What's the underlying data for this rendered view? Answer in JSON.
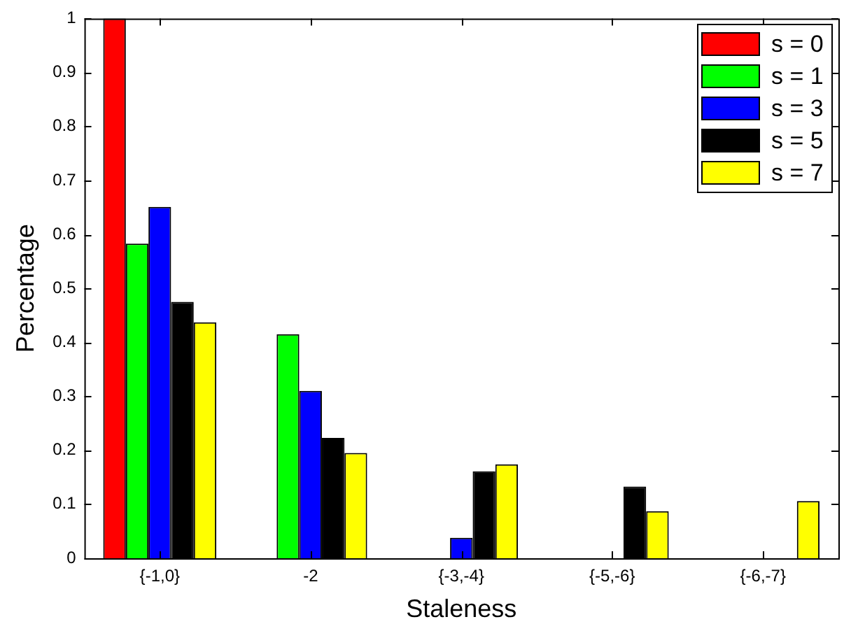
{
  "chart_data": {
    "type": "bar",
    "xlabel": "Staleness",
    "ylabel": "Percentage",
    "categories": [
      "{-1,0}",
      "-2",
      "{-3,-4}",
      "{-5,-6}",
      "{-6,-7}"
    ],
    "ylim": [
      0,
      1
    ],
    "yticks": [
      0,
      0.1,
      0.2,
      0.3,
      0.4,
      0.5,
      0.6,
      0.7,
      0.8,
      0.9,
      1
    ],
    "grid": false,
    "legend": "top right",
    "series": [
      {
        "name": "s = 0",
        "color": "#ff0000",
        "values": [
          1.0,
          0,
          0,
          0,
          0
        ]
      },
      {
        "name": "s = 1",
        "color": "#00ff00",
        "values": [
          0.583,
          0.415,
          0,
          0,
          0
        ]
      },
      {
        "name": "s = 3",
        "color": "#0000ff",
        "values": [
          0.651,
          0.31,
          0.038,
          0,
          0
        ]
      },
      {
        "name": "s = 5",
        "color": "#000000",
        "values": [
          0.475,
          0.223,
          0.161,
          0.133,
          0
        ]
      },
      {
        "name": "s = 7",
        "color": "#ffff00",
        "values": [
          0.437,
          0.195,
          0.174,
          0.087,
          0.106
        ]
      }
    ]
  }
}
